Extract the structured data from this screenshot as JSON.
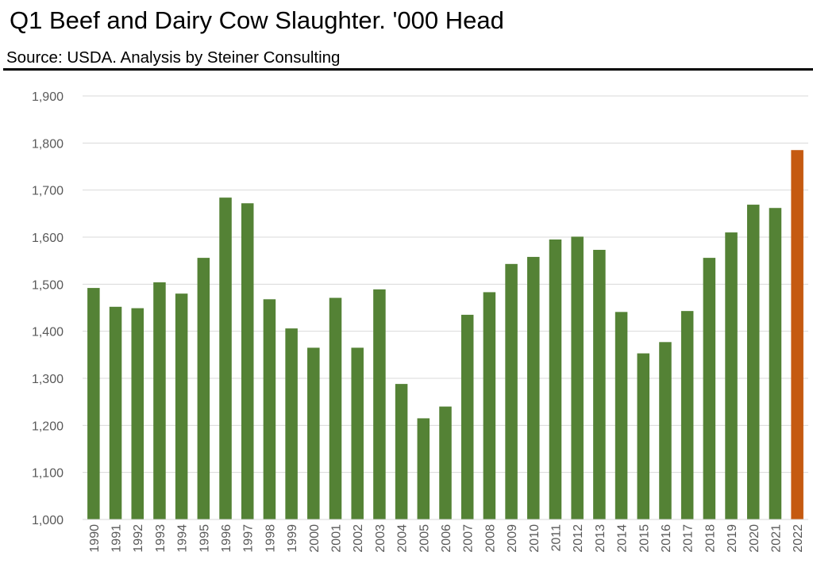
{
  "header": {
    "title": "Q1 Beef and Dairy Cow Slaughter.  '000 Head",
    "subtitle": "Source:  USDA.  Analysis by Steiner Consulting"
  },
  "colors": {
    "bar": "#548235",
    "highlight": "#C55A11",
    "grid": "#d9d9d9",
    "tick_text": "#595959"
  },
  "chart_data": {
    "type": "bar",
    "title": "Q1 Beef and Dairy Cow Slaughter.  '000 Head",
    "subtitle": "Source:  USDA.  Analysis by Steiner Consulting",
    "xlabel": "",
    "ylabel": "",
    "ylim": [
      1000,
      1900
    ],
    "yticks": [
      1000,
      1100,
      1200,
      1300,
      1400,
      1500,
      1600,
      1700,
      1800,
      1900
    ],
    "ytick_labels": [
      "1,000",
      "1,100",
      "1,200",
      "1,300",
      "1,400",
      "1,500",
      "1,600",
      "1,700",
      "1,800",
      "1,900"
    ],
    "grid": true,
    "legend": "none",
    "highlighted_category": "2022",
    "categories": [
      "1990",
      "1991",
      "1992",
      "1993",
      "1994",
      "1995",
      "1996",
      "1997",
      "1998",
      "1999",
      "2000",
      "2001",
      "2002",
      "2003",
      "2004",
      "2005",
      "2006",
      "2007",
      "2008",
      "2009",
      "2010",
      "2011",
      "2012",
      "2013",
      "2014",
      "2015",
      "2016",
      "2017",
      "2018",
      "2019",
      "2020",
      "2021",
      "2022"
    ],
    "values": [
      1492,
      1452,
      1449,
      1504,
      1480,
      1556,
      1684,
      1672,
      1468,
      1406,
      1365,
      1471,
      1365,
      1489,
      1288,
      1215,
      1240,
      1435,
      1483,
      1543,
      1558,
      1595,
      1601,
      1573,
      1441,
      1353,
      1377,
      1443,
      1556,
      1610,
      1669,
      1662,
      1785
    ]
  }
}
